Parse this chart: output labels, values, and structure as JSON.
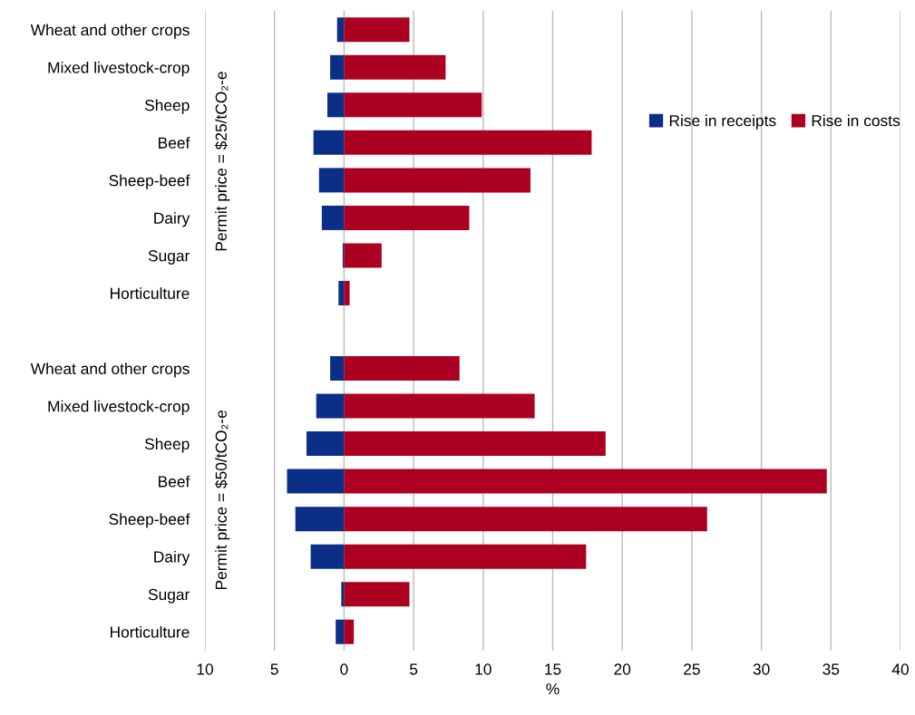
{
  "chart_data": {
    "type": "bar",
    "orientation": "horizontal",
    "stacked": true,
    "xlabel": "%",
    "categories": [
      "Wheat and other crops",
      "Mixed livestock-crop",
      "Sheep",
      "Beef",
      "Sheep-beef",
      "Dairy",
      "Sugar",
      "Horticulture",
      null,
      "Wheat and other crops",
      "Mixed livestock-crop",
      "Sheep",
      "Beef",
      "Sheep-beef",
      "Dairy",
      "Sugar",
      "Horticulture"
    ],
    "series": [
      {
        "name": "Rise in receipts",
        "color": "#0b2f86",
        "values": [
          -0.5,
          -1.0,
          -1.2,
          -2.2,
          -1.8,
          -1.6,
          -0.1,
          -0.4,
          null,
          -1.0,
          -2.0,
          -2.7,
          -4.1,
          -3.5,
          -2.4,
          -0.2,
          -0.6
        ]
      },
      {
        "name": "Rise in costs",
        "color": "#ac0022",
        "values": [
          4.7,
          7.3,
          9.9,
          17.8,
          13.4,
          9.0,
          2.7,
          0.4,
          null,
          8.3,
          13.7,
          18.8,
          34.7,
          26.1,
          17.4,
          4.7,
          0.7
        ]
      }
    ],
    "annotations": [
      "Permit price = $25/tCO₂-e",
      "Permit price = $50/tCO₂-e"
    ],
    "xlim": [
      -10,
      40
    ],
    "xticks": [
      {
        "value": -10,
        "label": "10"
      },
      {
        "value": -5,
        "label": "5"
      },
      0,
      5,
      10,
      15,
      20,
      25,
      30,
      35,
      40
    ],
    "grid": "x",
    "legend": "top right"
  }
}
